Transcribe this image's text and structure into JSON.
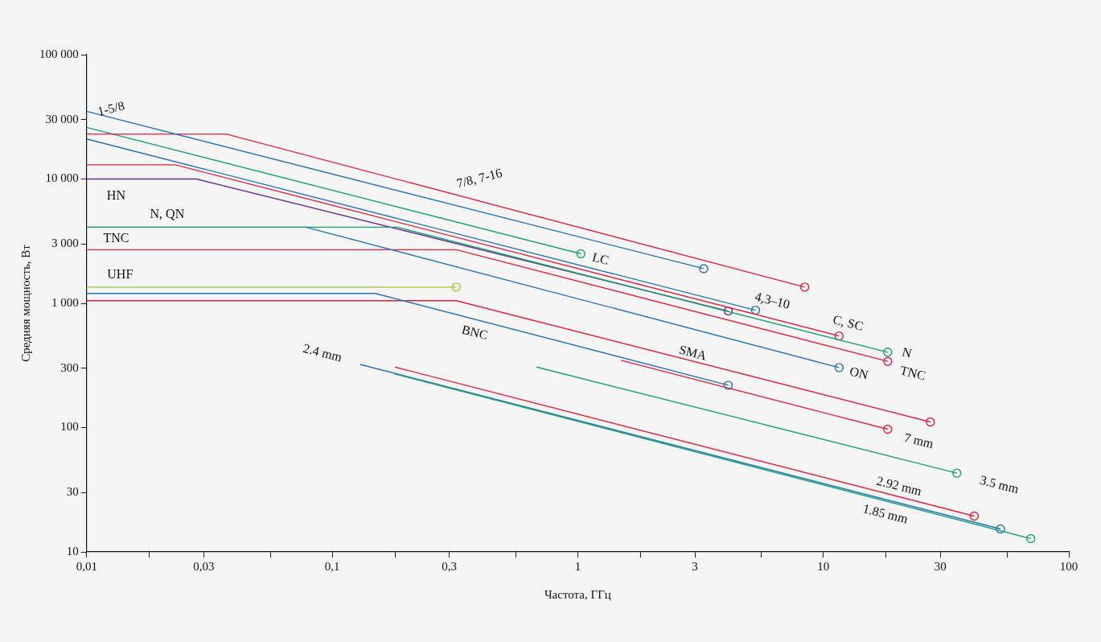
{
  "chart_data": {
    "type": "line",
    "xlabel": "Частота, ГГц",
    "ylabel": "Средняя мощность, Вт",
    "log": "xy",
    "grid": false,
    "marker": "none",
    "line_style": "solid",
    "xlim": [
      0.01,
      100
    ],
    "ylim": [
      10,
      100000
    ],
    "xticks": [
      {
        "value": 0.01,
        "label": "0,01"
      },
      {
        "value": 0.018,
        "label": null
      },
      {
        "value": 0.03,
        "label": "0,03"
      },
      {
        "value": 0.056,
        "label": null
      },
      {
        "value": 0.1,
        "label": "0,1"
      },
      {
        "value": 0.18,
        "label": null
      },
      {
        "value": 0.3,
        "label": "0,3"
      },
      {
        "value": 0.56,
        "label": null
      },
      1,
      {
        "value": 1.8,
        "label": null
      },
      3,
      {
        "value": 5.6,
        "label": null
      },
      10,
      {
        "value": 18,
        "label": null
      },
      30,
      {
        "value": 56,
        "label": null
      },
      100
    ],
    "yticks": [
      10,
      30,
      100,
      300,
      {
        "value": 1000,
        "label": "1 000"
      },
      {
        "value": 3000,
        "label": "3 000"
      },
      {
        "value": 10000,
        "label": "10 000"
      },
      {
        "value": 30000,
        "label": "30 000"
      },
      {
        "value": 100000,
        "label": "100 000"
      }
    ],
    "series": [
      {
        "color": "#2372b9",
        "x": [
          0.01,
          3.26
        ],
        "values": [
          35000,
          1900
        ]
      },
      {
        "color": "#e5203f",
        "x": [
          0.01,
          0.037,
          8.4
        ],
        "values": [
          23000,
          23000,
          1350
        ]
      },
      {
        "color": "#1ba074",
        "x": [
          0.01,
          1.03
        ],
        "values": [
          26000,
          2500
        ]
      },
      {
        "color": "#2372b9",
        "x": [
          0.01,
          5.3
        ],
        "values": [
          21000,
          880
        ]
      },
      {
        "color": "#e5203f",
        "x": [
          0.01,
          0.023,
          11.6
        ],
        "values": [
          13000,
          13000,
          546
        ]
      },
      {
        "color": "#1ba074",
        "x": [
          0.01,
          0.184,
          18.3
        ],
        "values": [
          4100,
          4100,
          404
        ]
      },
      {
        "color": "#6b2c91",
        "x": [
          0.01,
          0.028,
          4.1
        ],
        "values": [
          10000,
          10000,
          867
        ]
      },
      {
        "color": "#2372b9",
        "x": [
          0.01,
          0.078,
          11.6
        ],
        "values": [
          4100,
          4100,
          304
        ]
      },
      {
        "color": "#e5203f",
        "x": [
          0.01,
          0.32,
          18.3
        ],
        "values": [
          2700,
          2700,
          341
        ]
      },
      {
        "color": "#a5c63b",
        "x": [
          0.01,
          0.32
        ],
        "values": [
          1350,
          1350
        ]
      },
      {
        "color": "#2372b9",
        "x": [
          0.01,
          0.15,
          4.1
        ],
        "values": [
          1200,
          1200,
          219
        ]
      },
      {
        "color": "#e5203f",
        "x": [
          0.01,
          0.32,
          27.3
        ],
        "values": [
          1050,
          1050,
          111
        ]
      },
      {
        "color": "#e5203f",
        "x": [
          1.5,
          18.3
        ],
        "values": [
          348,
          97
        ]
      },
      {
        "color": "#1ba074",
        "x": [
          0.68,
          35
        ],
        "values": [
          307,
          43
        ]
      },
      {
        "color": "#e5203f",
        "x": [
          0.18,
          41.2
        ],
        "values": [
          307,
          19.4
        ]
      },
      {
        "color": "#1ba074",
        "x": [
          0.18,
          70
        ],
        "values": [
          270,
          12.8
        ]
      },
      {
        "color": "#2372b9",
        "x": [
          0.13,
          52.7
        ],
        "values": [
          322,
          15.3
        ]
      },
      {
        "type": "scatter",
        "marker": "circle",
        "color": "#2372b9",
        "x": [
          3.26,
          8.4,
          1.03,
          5.3,
          11.6,
          18.3,
          4.1,
          11.6,
          18.3,
          0.32,
          4.1,
          27.3,
          18.3,
          35,
          41.2,
          70,
          52.7
        ],
        "values": [
          1900,
          1350,
          2500,
          880,
          546,
          404,
          867,
          304,
          341,
          1350,
          219,
          111,
          97,
          43,
          19.4,
          12.8,
          15.3
        ],
        "colors": [
          "#2372b9",
          "#e5203f",
          "#1ba074",
          "#2372b9",
          "#e5203f",
          "#1ba074",
          "#6b2c91",
          "#2372b9",
          "#e5203f",
          "#a5c63b",
          "#2372b9",
          "#e5203f",
          "#e5203f",
          "#1ba074",
          "#e5203f",
          "#1ba074",
          "#2372b9"
        ]
      }
    ],
    "annotations": [
      "1-5/8",
      "7/8, 7-16",
      "HN",
      "N, QN",
      "TNC",
      "UHF",
      "BNC",
      "LC",
      "4,3–10",
      "C, SC",
      "N",
      "TNC",
      "SMA",
      "ON",
      "7 mm",
      "3.5 mm",
      "2.92 mm",
      "1.85 mm",
      "2.4 mm"
    ]
  }
}
